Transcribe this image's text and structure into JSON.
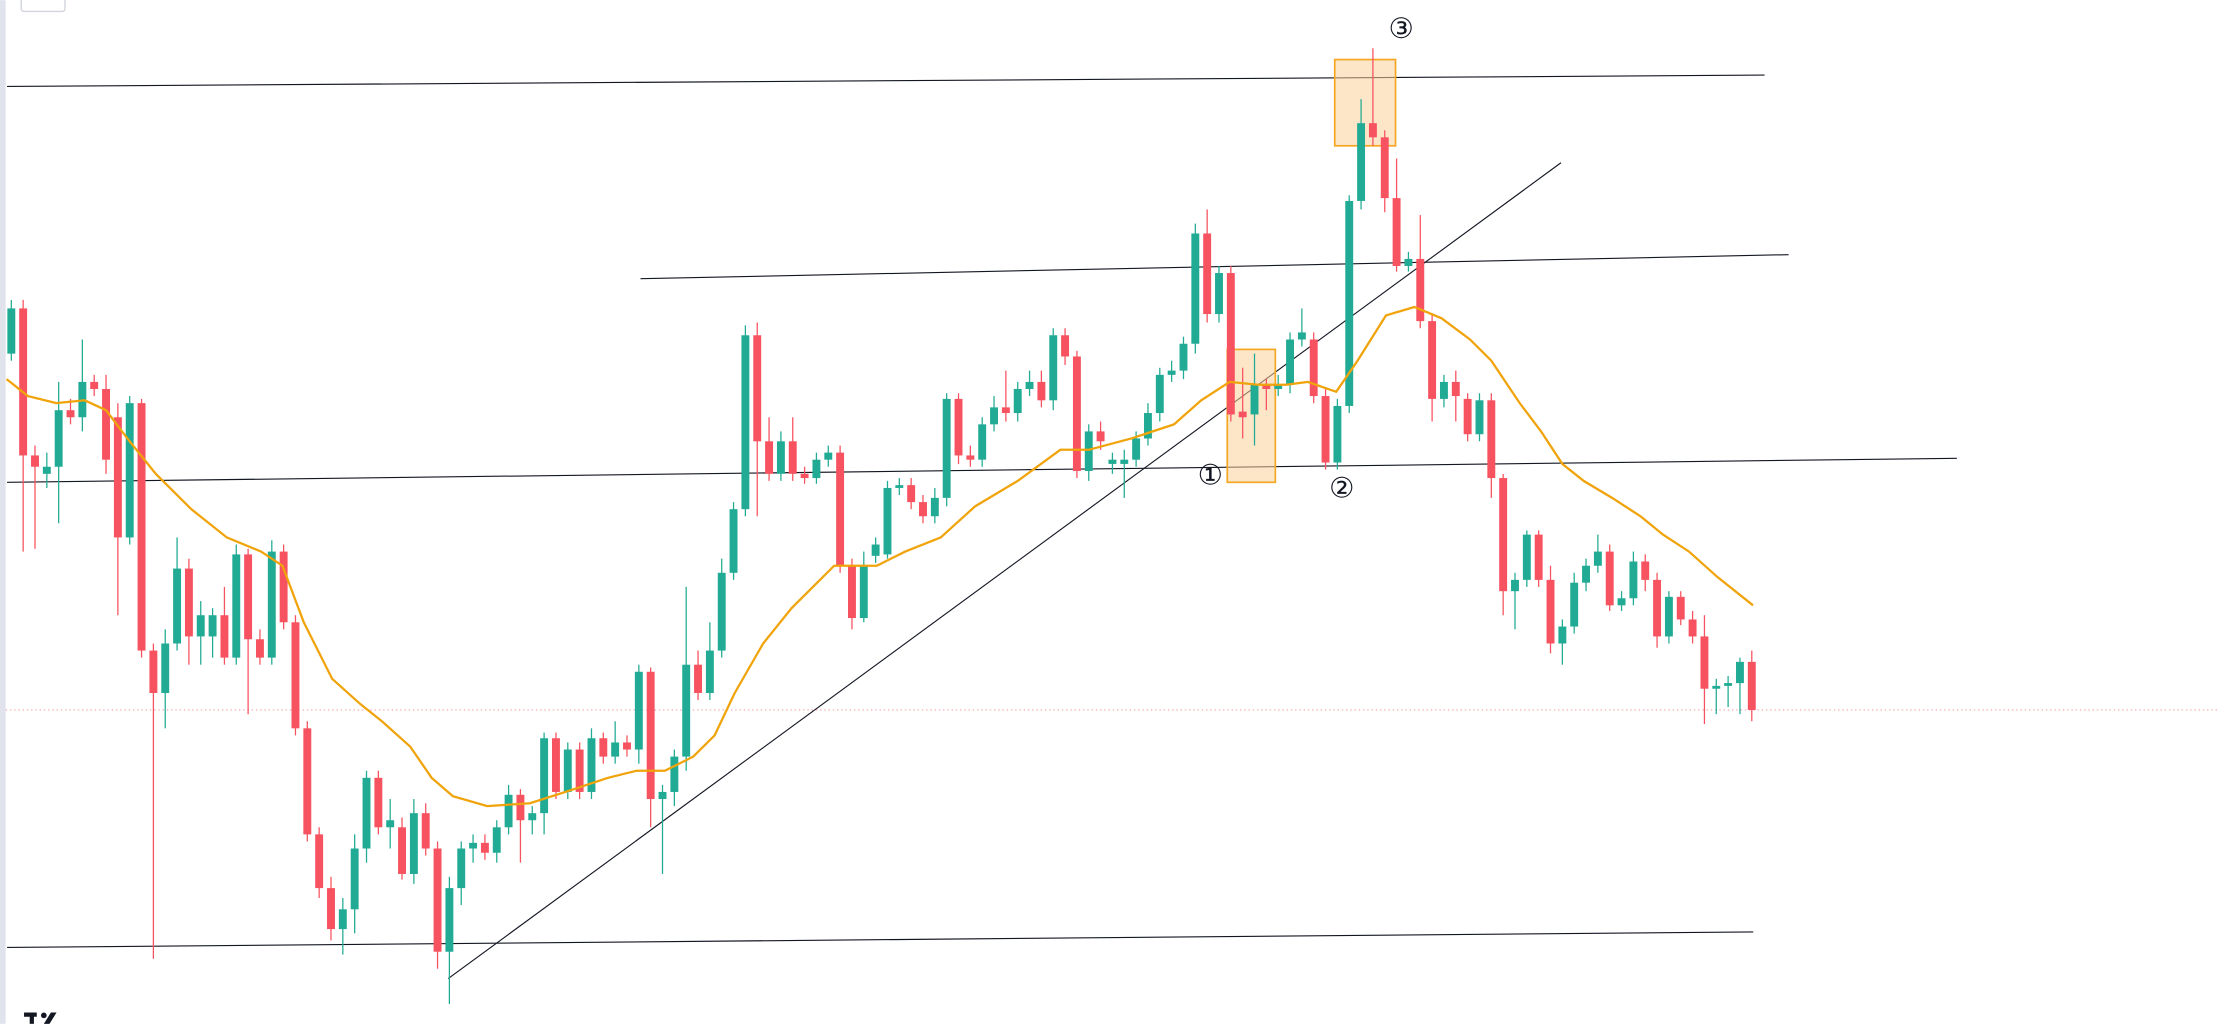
{
  "chart_data": {
    "type": "candlestick",
    "up_color": "#22ab94",
    "down_color": "#f7525f",
    "ma_color": "#f0a30a",
    "ylim": [
      0,
      724
    ],
    "candles": [
      [
        474,
        512,
        469,
        506
      ],
      [
        506,
        512,
        334,
        402
      ],
      [
        402,
        409,
        336,
        394
      ],
      [
        389,
        404,
        379,
        394
      ],
      [
        394,
        454,
        354,
        434
      ],
      [
        434,
        442,
        424,
        429
      ],
      [
        429,
        484,
        419,
        454
      ],
      [
        454,
        459,
        444,
        449
      ],
      [
        449,
        459,
        389,
        399
      ],
      [
        429,
        439,
        289,
        344
      ],
      [
        344,
        444,
        339,
        439
      ],
      [
        439,
        442,
        259,
        264
      ],
      [
        264,
        269,
        46,
        234
      ],
      [
        234,
        279,
        209,
        269
      ],
      [
        269,
        344,
        264,
        322
      ],
      [
        322,
        329,
        254,
        274
      ],
      [
        274,
        299,
        254,
        289
      ],
      [
        274,
        294,
        259,
        289
      ],
      [
        289,
        309,
        254,
        259
      ],
      [
        259,
        339,
        254,
        332
      ],
      [
        332,
        336,
        219,
        272
      ],
      [
        272,
        279,
        254,
        259
      ],
      [
        259,
        342,
        254,
        334
      ],
      [
        334,
        339,
        279,
        284
      ],
      [
        284,
        289,
        204,
        209
      ],
      [
        209,
        214,
        129,
        134
      ],
      [
        134,
        139,
        89,
        96
      ],
      [
        96,
        104,
        59,
        67
      ],
      [
        67,
        89,
        49,
        81
      ],
      [
        81,
        134,
        64,
        124
      ],
      [
        124,
        179,
        114,
        174
      ],
      [
        174,
        179,
        134,
        139
      ],
      [
        139,
        159,
        124,
        144
      ],
      [
        139,
        146,
        102,
        106
      ],
      [
        106,
        159,
        99,
        149
      ],
      [
        149,
        156,
        119,
        124
      ],
      [
        124,
        129,
        39,
        51
      ],
      [
        51,
        104,
        14,
        96
      ],
      [
        96,
        129,
        84,
        124
      ],
      [
        124,
        134,
        114,
        128
      ],
      [
        128,
        134,
        116,
        121
      ],
      [
        121,
        144,
        114,
        139
      ],
      [
        139,
        169,
        134,
        162
      ],
      [
        162,
        166,
        114,
        144
      ],
      [
        144,
        154,
        134,
        149
      ],
      [
        149,
        206,
        134,
        202
      ],
      [
        202,
        206,
        159,
        164
      ],
      [
        164,
        199,
        159,
        194
      ],
      [
        194,
        199,
        159,
        164
      ],
      [
        164,
        209,
        159,
        202
      ],
      [
        202,
        206,
        184,
        189
      ],
      [
        189,
        214,
        184,
        199
      ],
      [
        199,
        204,
        189,
        194
      ],
      [
        194,
        254,
        184,
        249
      ],
      [
        249,
        252,
        139,
        159
      ],
      [
        159,
        169,
        106,
        164
      ],
      [
        164,
        194,
        154,
        189
      ],
      [
        189,
        309,
        179,
        254
      ],
      [
        254,
        264,
        229,
        234
      ],
      [
        234,
        284,
        229,
        264
      ],
      [
        264,
        329,
        259,
        319
      ],
      [
        319,
        369,
        314,
        364
      ],
      [
        364,
        494,
        359,
        487
      ],
      [
        487,
        496,
        359,
        412
      ],
      [
        412,
        429,
        384,
        389
      ],
      [
        389,
        419,
        384,
        412
      ],
      [
        412,
        429,
        384,
        389
      ],
      [
        389,
        394,
        382,
        386
      ],
      [
        386,
        404,
        382,
        399
      ],
      [
        399,
        409,
        394,
        404
      ],
      [
        404,
        409,
        319,
        324
      ],
      [
        324,
        329,
        279,
        287
      ],
      [
        287,
        334,
        284,
        324
      ],
      [
        331,
        344,
        326,
        339
      ],
      [
        332,
        384,
        329,
        379
      ],
      [
        379,
        386,
        374,
        381
      ],
      [
        381,
        386,
        364,
        369
      ],
      [
        369,
        374,
        354,
        359
      ],
      [
        359,
        379,
        354,
        372
      ],
      [
        372,
        446,
        366,
        442
      ],
      [
        442,
        446,
        396,
        402
      ],
      [
        402,
        409,
        394,
        399
      ],
      [
        399,
        429,
        394,
        424
      ],
      [
        424,
        444,
        419,
        436
      ],
      [
        436,
        462,
        426,
        432
      ],
      [
        432,
        454,
        426,
        449
      ],
      [
        449,
        462,
        444,
        454
      ],
      [
        454,
        462,
        436,
        441
      ],
      [
        441,
        492,
        434,
        487
      ],
      [
        487,
        492,
        466,
        472
      ],
      [
        472,
        476,
        386,
        391
      ],
      [
        391,
        424,
        384,
        419
      ],
      [
        419,
        426,
        406,
        412
      ],
      [
        396,
        404,
        389,
        399
      ],
      [
        396,
        406,
        372,
        399
      ],
      [
        399,
        419,
        394,
        414
      ],
      [
        414,
        439,
        409,
        432
      ],
      [
        432,
        464,
        426,
        459
      ],
      [
        459,
        469,
        454,
        462
      ],
      [
        462,
        486,
        456,
        481
      ],
      [
        481,
        566,
        474,
        559
      ],
      [
        559,
        576,
        496,
        502
      ],
      [
        502,
        536,
        496,
        531
      ],
      [
        531,
        536,
        426,
        431
      ],
      [
        433,
        464,
        414,
        429
      ],
      [
        431,
        474,
        409,
        452
      ],
      [
        452,
        456,
        434,
        449
      ],
      [
        449,
        459,
        444,
        452
      ],
      [
        452,
        489,
        446,
        484
      ],
      [
        484,
        506,
        479,
        489
      ],
      [
        484,
        489,
        439,
        444
      ],
      [
        444,
        449,
        392,
        397
      ],
      [
        397,
        442,
        392,
        437
      ],
      [
        437,
        586,
        432,
        582
      ],
      [
        582,
        654,
        576,
        637
      ],
      [
        637,
        690,
        621,
        627
      ],
      [
        627,
        632,
        574,
        584
      ],
      [
        584,
        612,
        532,
        536
      ],
      [
        536,
        546,
        532,
        541
      ],
      [
        541,
        572,
        492,
        497
      ],
      [
        497,
        502,
        426,
        442
      ],
      [
        442,
        459,
        436,
        454
      ],
      [
        454,
        462,
        426,
        444
      ],
      [
        442,
        446,
        412,
        417
      ],
      [
        417,
        446,
        412,
        441
      ],
      [
        441,
        446,
        372,
        386
      ],
      [
        386,
        389,
        289,
        306
      ],
      [
        306,
        319,
        279,
        314
      ],
      [
        314,
        349,
        309,
        346
      ],
      [
        346,
        349,
        309,
        314
      ],
      [
        314,
        324,
        262,
        269
      ],
      [
        269,
        286,
        254,
        281
      ],
      [
        281,
        319,
        276,
        312
      ],
      [
        312,
        329,
        306,
        324
      ],
      [
        324,
        346,
        319,
        334
      ],
      [
        334,
        339,
        292,
        296
      ],
      [
        296,
        306,
        292,
        301
      ],
      [
        301,
        334,
        296,
        327
      ],
      [
        327,
        332,
        306,
        314
      ],
      [
        314,
        319,
        266,
        274
      ],
      [
        274,
        306,
        269,
        302
      ],
      [
        302,
        306,
        282,
        286
      ],
      [
        286,
        292,
        269,
        274
      ],
      [
        274,
        289,
        212,
        237
      ],
      [
        237,
        244,
        219,
        239
      ],
      [
        239,
        246,
        224,
        241
      ],
      [
        241,
        259,
        219,
        256
      ],
      [
        256,
        264,
        214,
        222
      ]
    ],
    "ma": {
      "x": [
        -0.4,
        1.4,
        3.8,
        6.2,
        8,
        9.8,
        12.2,
        15.2,
        18.2,
        21.1,
        22.9,
        24.7,
        27.1,
        29.5,
        31.3,
        33.7,
        35.5,
        37.3,
        40.2,
        43.8,
        46.8,
        50.4,
        52.8,
        55.2,
        57.6,
        59.4,
        61.1,
        63.5,
        65.9,
        69.5,
        73.1,
        75.5,
        78.5,
        81.4,
        85,
        88.6,
        91,
        94.6,
        98.2,
        100.5,
        102.9,
        105.3,
        107.7,
        109.5,
        111.9,
        113.7,
        116.1,
        118.5,
        120.8,
        123.2,
        125,
        127.4,
        129.2,
        131,
        132.8,
        135.2,
        137.6,
        139.5,
        141.7,
        144.1,
        147.1
      ],
      "values": [
        456,
        444,
        439,
        441,
        434,
        414,
        389,
        364,
        344,
        334,
        324,
        284,
        244,
        226,
        214,
        196,
        174,
        161,
        154,
        156,
        164,
        174,
        179,
        179,
        189,
        204,
        234,
        269,
        294,
        324,
        324,
        334,
        344,
        366,
        384,
        406,
        406,
        414,
        424,
        441,
        454,
        452,
        452,
        454,
        447,
        469,
        501,
        507,
        499,
        484,
        469,
        439,
        419,
        396,
        384,
        372,
        359,
        346,
        334,
        316,
        296
      ]
    },
    "annotations": [
      "①",
      "②",
      "③"
    ]
  }
}
